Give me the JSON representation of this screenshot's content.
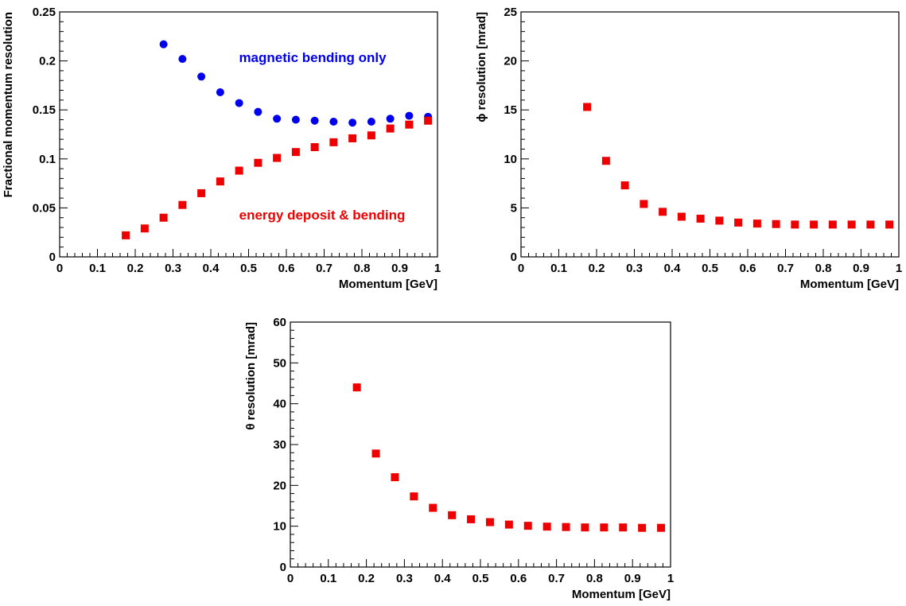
{
  "chart_data": [
    {
      "type": "scatter",
      "xlabel": "Momentum [GeV]",
      "ylabel": "Fractional momentum resolution",
      "xlim": [
        0,
        1
      ],
      "ylim": [
        0,
        0.25
      ],
      "x_ticks": [
        "0",
        "0.1",
        "0.2",
        "0.3",
        "0.4",
        "0.5",
        "0.6",
        "0.7",
        "0.8",
        "0.9",
        "1"
      ],
      "y_ticks": [
        "0",
        "0.05",
        "0.1",
        "0.15",
        "0.2",
        "0.25"
      ],
      "annotations": [
        "magnetic bending only",
        "energy deposit & bending"
      ],
      "series": [
        {
          "color": "#0000ee",
          "marker": "circle",
          "x": [
            0.275,
            0.325,
            0.375,
            0.425,
            0.475,
            0.525,
            0.575,
            0.625,
            0.675,
            0.725,
            0.775,
            0.825,
            0.875,
            0.925,
            0.975
          ],
          "y": [
            0.217,
            0.202,
            0.184,
            0.168,
            0.157,
            0.148,
            0.141,
            0.14,
            0.139,
            0.138,
            0.137,
            0.138,
            0.141,
            0.144,
            0.143
          ]
        },
        {
          "color": "#ee0000",
          "marker": "square",
          "x": [
            0.175,
            0.225,
            0.275,
            0.325,
            0.375,
            0.425,
            0.475,
            0.525,
            0.575,
            0.625,
            0.675,
            0.725,
            0.775,
            0.825,
            0.875,
            0.925,
            0.975
          ],
          "y": [
            0.022,
            0.029,
            0.04,
            0.053,
            0.065,
            0.077,
            0.088,
            0.096,
            0.101,
            0.107,
            0.112,
            0.117,
            0.121,
            0.124,
            0.131,
            0.135,
            0.139
          ]
        }
      ]
    },
    {
      "type": "scatter",
      "xlabel": "Momentum [GeV]",
      "ylabel": "ϕ resolution [mrad]",
      "xlim": [
        0,
        1
      ],
      "ylim": [
        0,
        25
      ],
      "x_ticks": [
        "0",
        "0.1",
        "0.2",
        "0.3",
        "0.4",
        "0.5",
        "0.6",
        "0.7",
        "0.8",
        "0.9",
        "1"
      ],
      "y_ticks": [
        "0",
        "5",
        "10",
        "15",
        "20",
        "25"
      ],
      "annotations": [],
      "series": [
        {
          "color": "#ee0000",
          "marker": "square",
          "x": [
            0.175,
            0.225,
            0.275,
            0.325,
            0.375,
            0.425,
            0.475,
            0.525,
            0.575,
            0.625,
            0.675,
            0.725,
            0.775,
            0.825,
            0.875,
            0.925,
            0.975
          ],
          "y": [
            15.3,
            9.8,
            7.3,
            5.4,
            4.6,
            4.1,
            3.9,
            3.7,
            3.5,
            3.4,
            3.35,
            3.3,
            3.3,
            3.3,
            3.3,
            3.3,
            3.3
          ]
        }
      ]
    },
    {
      "type": "scatter",
      "xlabel": "Momentum [GeV]",
      "ylabel": "θ resolution [mrad]",
      "xlim": [
        0,
        1
      ],
      "ylim": [
        0,
        60
      ],
      "x_ticks": [
        "0",
        "0.1",
        "0.2",
        "0.3",
        "0.4",
        "0.5",
        "0.6",
        "0.7",
        "0.8",
        "0.9",
        "1"
      ],
      "y_ticks": [
        "0",
        "10",
        "20",
        "30",
        "40",
        "50",
        "60"
      ],
      "annotations": [],
      "series": [
        {
          "color": "#ee0000",
          "marker": "square",
          "x": [
            0.175,
            0.225,
            0.275,
            0.325,
            0.375,
            0.425,
            0.475,
            0.525,
            0.575,
            0.625,
            0.675,
            0.725,
            0.775,
            0.825,
            0.875,
            0.925,
            0.975
          ],
          "y": [
            44.0,
            27.8,
            22.0,
            17.3,
            14.5,
            12.7,
            11.7,
            11.0,
            10.4,
            10.1,
            9.9,
            9.8,
            9.7,
            9.7,
            9.7,
            9.6,
            9.6
          ]
        }
      ]
    }
  ]
}
